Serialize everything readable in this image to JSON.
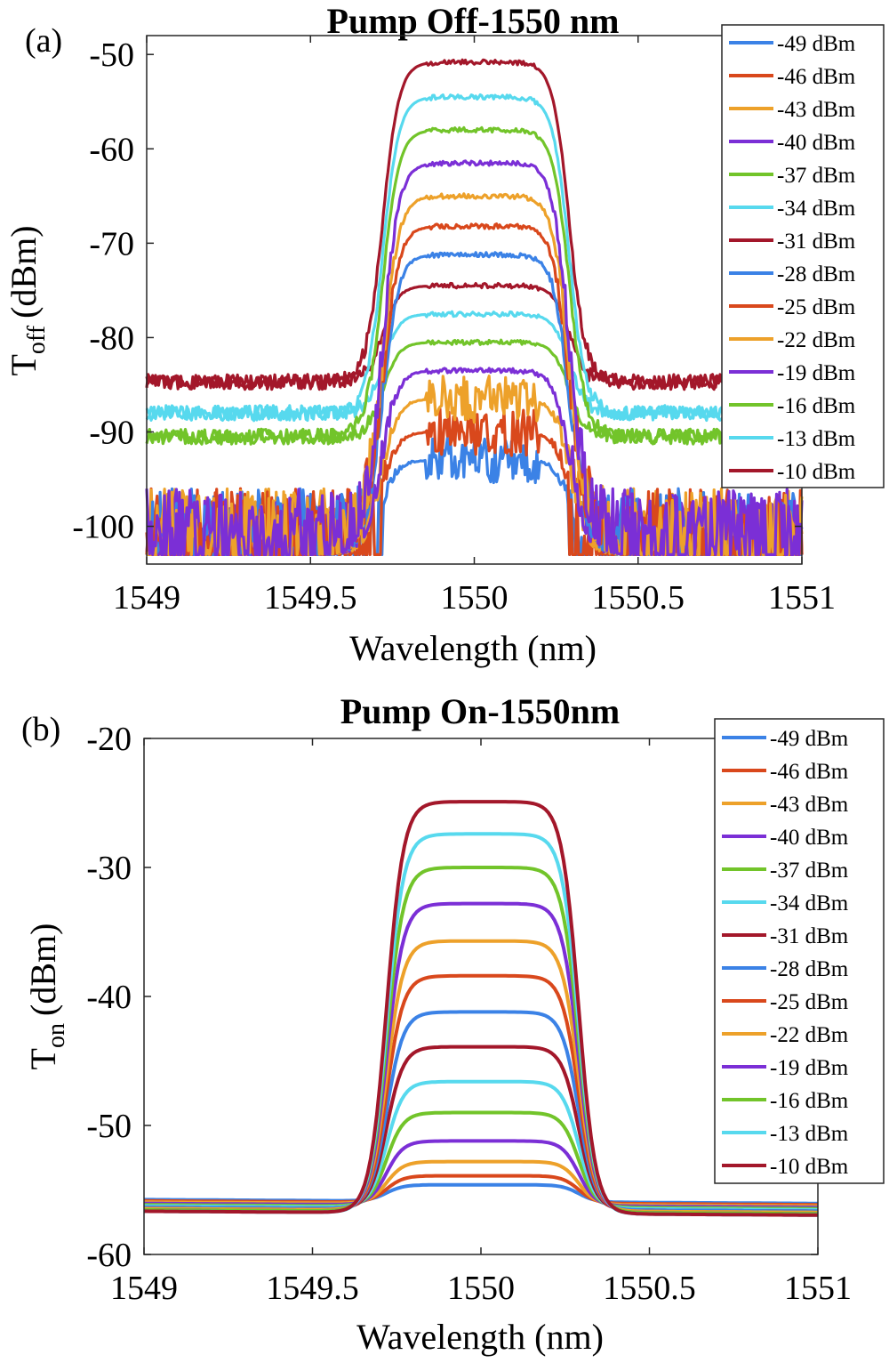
{
  "chart_data": [
    {
      "type": "line",
      "panel_label": "(a)",
      "title": "Pump Off-1550 nm",
      "xlabel": "Wavelength (nm)",
      "ylabel_main": "T",
      "ylabel_sub": "off",
      "ylabel_unit": "(dBm)",
      "xlim": [
        1549,
        1551
      ],
      "ylim": [
        -104,
        -48
      ],
      "xticks": [
        "1549",
        "1549.5",
        "1550",
        "1550.5",
        "1551"
      ],
      "yticks": [
        "-50",
        "-60",
        "-70",
        "-80",
        "-90",
        "-100"
      ],
      "xtick_values": [
        1549,
        1549.5,
        1550,
        1550.5,
        1551
      ],
      "ytick_values": [
        -50,
        -60,
        -70,
        -80,
        -90,
        -100
      ],
      "noise_floor": -103,
      "legend_position": "top-right",
      "series": [
        {
          "name": "-49 dBm",
          "color": "#3b82e6",
          "peak": -93,
          "baseline": -97
        },
        {
          "name": "-46 dBm",
          "color": "#d9481c",
          "peak": -90,
          "baseline": -97
        },
        {
          "name": "-43 dBm",
          "color": "#eda12a",
          "peak": -86.5,
          "baseline": -97
        },
        {
          "name": "-40 dBm",
          "color": "#7b2fd6",
          "peak": -83.5,
          "baseline": -97
        },
        {
          "name": "-37 dBm",
          "color": "#72c42a",
          "peak": -80.5,
          "baseline": -90.5
        },
        {
          "name": "-34 dBm",
          "color": "#57d9ee",
          "peak": -77.5,
          "baseline": -88
        },
        {
          "name": "-31 dBm",
          "color": "#a3172a",
          "peak": -74.5,
          "baseline": -84.7
        },
        {
          "name": "-28 dBm",
          "color": "#3b82e6",
          "peak": -71.2,
          "baseline": -97
        },
        {
          "name": "-25 dBm",
          "color": "#d9481c",
          "peak": -68.2,
          "baseline": -97
        },
        {
          "name": "-22 dBm",
          "color": "#eda12a",
          "peak": -65,
          "baseline": -97
        },
        {
          "name": "-19 dBm",
          "color": "#7b2fd6",
          "peak": -61.5,
          "baseline": -97
        },
        {
          "name": "-16 dBm",
          "color": "#72c42a",
          "peak": -58,
          "baseline": -90.5
        },
        {
          "name": "-13 dBm",
          "color": "#57d9ee",
          "peak": -54.5,
          "baseline": -88
        },
        {
          "name": "-10 dBm",
          "color": "#a3172a",
          "peak": -50.8,
          "baseline": -84.7
        }
      ]
    },
    {
      "type": "line",
      "panel_label": "(b)",
      "title": "Pump On-1550nm",
      "xlabel": "Wavelength (nm)",
      "ylabel_main": "T",
      "ylabel_sub": "on",
      "ylabel_unit": "(dBm)",
      "xlim": [
        1549,
        1551
      ],
      "ylim": [
        -60,
        -20
      ],
      "xticks": [
        "1549",
        "1549.5",
        "1550",
        "1550.5",
        "1551"
      ],
      "yticks": [
        "-20",
        "-30",
        "-40",
        "-50",
        "-60"
      ],
      "xtick_values": [
        1549,
        1549.5,
        1550,
        1550.5,
        1551
      ],
      "ytick_values": [
        -20,
        -30,
        -40,
        -50,
        -60
      ],
      "legend_position": "top-right",
      "series": [
        {
          "name": "-49 dBm",
          "color": "#3b82e6",
          "peak": -54.6,
          "baseline": -55.9
        },
        {
          "name": "-46 dBm",
          "color": "#d9481c",
          "peak": -53.9,
          "baseline": -56.0
        },
        {
          "name": "-43 dBm",
          "color": "#eda12a",
          "peak": -52.8,
          "baseline": -56.1
        },
        {
          "name": "-40 dBm",
          "color": "#7b2fd6",
          "peak": -51.2,
          "baseline": -56.2
        },
        {
          "name": "-37 dBm",
          "color": "#72c42a",
          "peak": -49.0,
          "baseline": -56.3
        },
        {
          "name": "-34 dBm",
          "color": "#57d9ee",
          "peak": -46.6,
          "baseline": -56.4
        },
        {
          "name": "-31 dBm",
          "color": "#a3172a",
          "peak": -43.9,
          "baseline": -56.5
        },
        {
          "name": "-28 dBm",
          "color": "#3b82e6",
          "peak": -41.2,
          "baseline": -56.5
        },
        {
          "name": "-25 dBm",
          "color": "#d9481c",
          "peak": -38.4,
          "baseline": -56.6
        },
        {
          "name": "-22 dBm",
          "color": "#eda12a",
          "peak": -35.7,
          "baseline": -56.6
        },
        {
          "name": "-19 dBm",
          "color": "#7b2fd6",
          "peak": -32.8,
          "baseline": -56.7
        },
        {
          "name": "-16 dBm",
          "color": "#72c42a",
          "peak": -30.0,
          "baseline": -56.7
        },
        {
          "name": "-13 dBm",
          "color": "#57d9ee",
          "peak": -27.4,
          "baseline": -56.8
        },
        {
          "name": "-10 dBm",
          "color": "#a3172a",
          "peak": -24.9,
          "baseline": -56.8
        }
      ]
    }
  ]
}
